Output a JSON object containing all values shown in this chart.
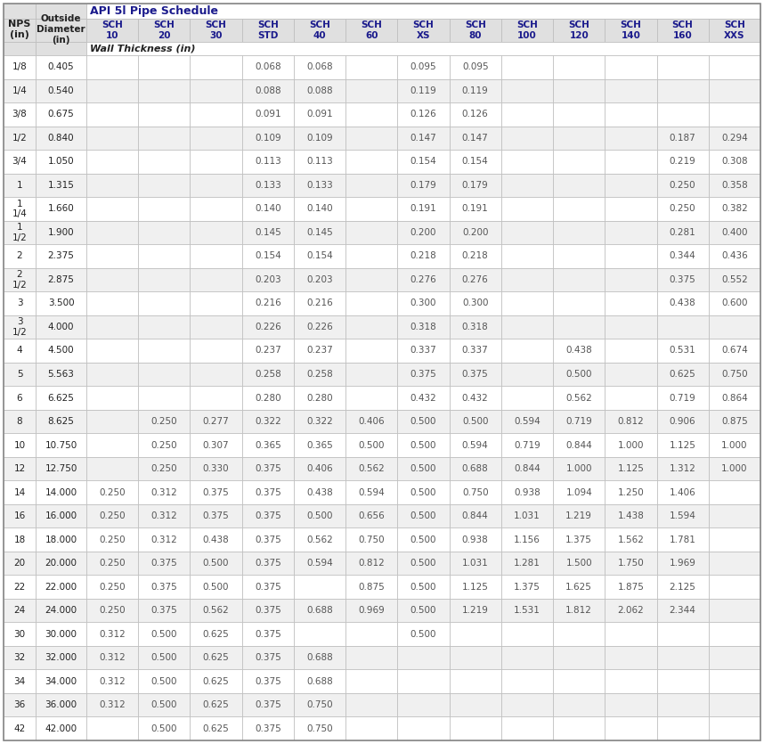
{
  "title": "API 5l Pipe Schedule",
  "wall_thickness_label": "Wall Thickness (in)",
  "col_headers_line1": [
    "SCH",
    "SCH",
    "SCH",
    "SCH",
    "SCH",
    "SCH",
    "SCH",
    "SCH",
    "SCH",
    "SCH",
    "SCH",
    "SCH",
    "SCH"
  ],
  "col_headers_line2": [
    "10",
    "20",
    "30",
    "STD",
    "40",
    "60",
    "XS",
    "80",
    "100",
    "120",
    "140",
    "160",
    "XXS"
  ],
  "nps_labels": [
    "1/8",
    "1/4",
    "3/8",
    "1/2",
    "3/4",
    "1",
    "1\n1/4",
    "1\n1/2",
    "2",
    "2\n1/2",
    "3",
    "3\n1/2",
    "4",
    "5",
    "6",
    "8",
    "10",
    "12",
    "14",
    "16",
    "18",
    "20",
    "22",
    "24",
    "30",
    "32",
    "34",
    "36",
    "42"
  ],
  "od_labels": [
    "0.405",
    "0.540",
    "0.675",
    "0.840",
    "1.050",
    "1.315",
    "1.660",
    "1.900",
    "2.375",
    "2.875",
    "3.500",
    "4.000",
    "4.500",
    "5.563",
    "6.625",
    "8.625",
    "10.750",
    "12.750",
    "14.000",
    "16.000",
    "18.000",
    "20.000",
    "22.000",
    "24.000",
    "30.000",
    "32.000",
    "34.000",
    "36.000",
    "42.000"
  ],
  "table_data": [
    [
      "",
      "",
      "",
      "0.068",
      "0.068",
      "",
      "0.095",
      "0.095",
      "",
      "",
      "",
      "",
      ""
    ],
    [
      "",
      "",
      "",
      "0.088",
      "0.088",
      "",
      "0.119",
      "0.119",
      "",
      "",
      "",
      "",
      ""
    ],
    [
      "",
      "",
      "",
      "0.091",
      "0.091",
      "",
      "0.126",
      "0.126",
      "",
      "",
      "",
      "",
      ""
    ],
    [
      "",
      "",
      "",
      "0.109",
      "0.109",
      "",
      "0.147",
      "0.147",
      "",
      "",
      "",
      "0.187",
      "0.294"
    ],
    [
      "",
      "",
      "",
      "0.113",
      "0.113",
      "",
      "0.154",
      "0.154",
      "",
      "",
      "",
      "0.219",
      "0.308"
    ],
    [
      "",
      "",
      "",
      "0.133",
      "0.133",
      "",
      "0.179",
      "0.179",
      "",
      "",
      "",
      "0.250",
      "0.358"
    ],
    [
      "",
      "",
      "",
      "0.140",
      "0.140",
      "",
      "0.191",
      "0.191",
      "",
      "",
      "",
      "0.250",
      "0.382"
    ],
    [
      "",
      "",
      "",
      "0.145",
      "0.145",
      "",
      "0.200",
      "0.200",
      "",
      "",
      "",
      "0.281",
      "0.400"
    ],
    [
      "",
      "",
      "",
      "0.154",
      "0.154",
      "",
      "0.218",
      "0.218",
      "",
      "",
      "",
      "0.344",
      "0.436"
    ],
    [
      "",
      "",
      "",
      "0.203",
      "0.203",
      "",
      "0.276",
      "0.276",
      "",
      "",
      "",
      "0.375",
      "0.552"
    ],
    [
      "",
      "",
      "",
      "0.216",
      "0.216",
      "",
      "0.300",
      "0.300",
      "",
      "",
      "",
      "0.438",
      "0.600"
    ],
    [
      "",
      "",
      "",
      "0.226",
      "0.226",
      "",
      "0.318",
      "0.318",
      "",
      "",
      "",
      "",
      ""
    ],
    [
      "",
      "",
      "",
      "0.237",
      "0.237",
      "",
      "0.337",
      "0.337",
      "",
      "0.438",
      "",
      "0.531",
      "0.674"
    ],
    [
      "",
      "",
      "",
      "0.258",
      "0.258",
      "",
      "0.375",
      "0.375",
      "",
      "0.500",
      "",
      "0.625",
      "0.750"
    ],
    [
      "",
      "",
      "",
      "0.280",
      "0.280",
      "",
      "0.432",
      "0.432",
      "",
      "0.562",
      "",
      "0.719",
      "0.864"
    ],
    [
      "",
      "0.250",
      "0.277",
      "0.322",
      "0.322",
      "0.406",
      "0.500",
      "0.500",
      "0.594",
      "0.719",
      "0.812",
      "0.906",
      "0.875"
    ],
    [
      "",
      "0.250",
      "0.307",
      "0.365",
      "0.365",
      "0.500",
      "0.500",
      "0.594",
      "0.719",
      "0.844",
      "1.000",
      "1.125",
      "1.000"
    ],
    [
      "",
      "0.250",
      "0.330",
      "0.375",
      "0.406",
      "0.562",
      "0.500",
      "0.688",
      "0.844",
      "1.000",
      "1.125",
      "1.312",
      "1.000"
    ],
    [
      "0.250",
      "0.312",
      "0.375",
      "0.375",
      "0.438",
      "0.594",
      "0.500",
      "0.750",
      "0.938",
      "1.094",
      "1.250",
      "1.406",
      ""
    ],
    [
      "0.250",
      "0.312",
      "0.375",
      "0.375",
      "0.500",
      "0.656",
      "0.500",
      "0.844",
      "1.031",
      "1.219",
      "1.438",
      "1.594",
      ""
    ],
    [
      "0.250",
      "0.312",
      "0.438",
      "0.375",
      "0.562",
      "0.750",
      "0.500",
      "0.938",
      "1.156",
      "1.375",
      "1.562",
      "1.781",
      ""
    ],
    [
      "0.250",
      "0.375",
      "0.500",
      "0.375",
      "0.594",
      "0.812",
      "0.500",
      "1.031",
      "1.281",
      "1.500",
      "1.750",
      "1.969",
      ""
    ],
    [
      "0.250",
      "0.375",
      "0.500",
      "0.375",
      "",
      "0.875",
      "0.500",
      "1.125",
      "1.375",
      "1.625",
      "1.875",
      "2.125",
      ""
    ],
    [
      "0.250",
      "0.375",
      "0.562",
      "0.375",
      "0.688",
      "0.969",
      "0.500",
      "1.219",
      "1.531",
      "1.812",
      "2.062",
      "2.344",
      ""
    ],
    [
      "0.312",
      "0.500",
      "0.625",
      "0.375",
      "",
      "",
      "0.500",
      "",
      "",
      "",
      "",
      "",
      ""
    ],
    [
      "0.312",
      "0.500",
      "0.625",
      "0.375",
      "0.688",
      "",
      "",
      "",
      "",
      "",
      "",
      "",
      ""
    ],
    [
      "0.312",
      "0.500",
      "0.625",
      "0.375",
      "0.688",
      "",
      "",
      "",
      "",
      "",
      "",
      "",
      ""
    ],
    [
      "0.312",
      "0.500",
      "0.625",
      "0.375",
      "0.750",
      "",
      "",
      "",
      "",
      "",
      "",
      "",
      ""
    ],
    [
      "",
      "0.500",
      "0.625",
      "0.375",
      "0.750",
      "",
      "",
      "",
      "",
      "",
      "",
      "",
      ""
    ]
  ],
  "header_bg": "#e0e0e0",
  "alt_row_bg": "#f0f0f0",
  "white_bg": "#ffffff",
  "grid_color": "#bbbbbb",
  "outer_border_color": "#888888",
  "header_text_color": "#1a1a8c",
  "data_text_color": "#555555",
  "nps_od_text_color": "#222222",
  "title_color": "#1a1a8c",
  "wt_label_color": "#222222"
}
